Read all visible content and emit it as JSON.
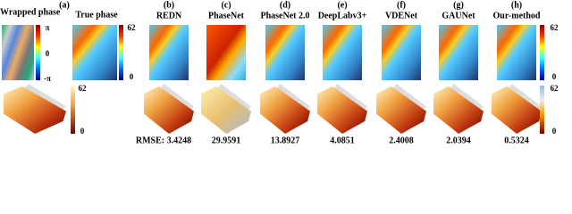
{
  "input": {
    "letter": "(a)",
    "wrapped_label": "Wrapped phase",
    "true_label": "True phase",
    "wrapped_ticks": [
      "π",
      "0",
      "-π"
    ],
    "true_ticks": [
      "62",
      "0"
    ],
    "surface_ticks": [
      "62",
      "0"
    ]
  },
  "methods": [
    {
      "letter": "(b)",
      "name": "REDN",
      "rmse": "RMSE: 3.4248"
    },
    {
      "letter": "(c)",
      "name": "PhaseNet",
      "rmse": "29.9591"
    },
    {
      "letter": "(d)",
      "name": "PhaseNet 2.0",
      "rmse": "13.8927"
    },
    {
      "letter": "(e)",
      "name": "DeepLabv3+",
      "rmse": "4.0851"
    },
    {
      "letter": "(f)",
      "name": "VDENet",
      "rmse": "2.4008"
    },
    {
      "letter": "(g)",
      "name": "GAUNet",
      "rmse": "2.0394"
    },
    {
      "letter": "(h)",
      "name": "Our-method",
      "rmse": "0.5324"
    }
  ],
  "right_ticks_top": [
    "62",
    "0"
  ],
  "right_ticks_bottom": [
    "62",
    "0"
  ]
}
